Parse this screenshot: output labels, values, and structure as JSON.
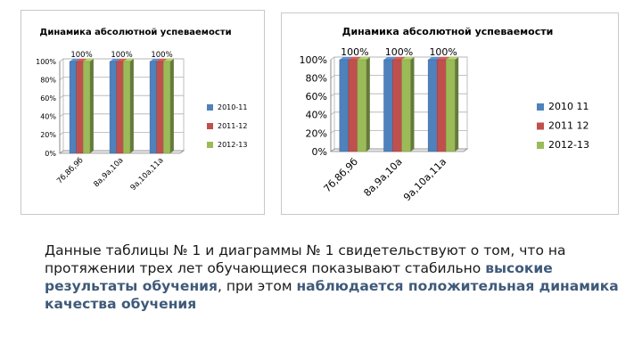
{
  "chart_data": [
    {
      "type": "bar",
      "title": "Динамика абсолютной успеваемости",
      "categories": [
        "7б,8б,9б",
        "8а,9а,10а",
        "9а,10а,11а"
      ],
      "series": [
        {
          "name": "2010-11",
          "values": [
            100,
            100,
            100
          ],
          "color": "#4f81bd"
        },
        {
          "name": "2011-12",
          "values": [
            100,
            100,
            100
          ],
          "color": "#c0504d"
        },
        {
          "name": "2012-13",
          "values": [
            100,
            100,
            100
          ],
          "color": "#9bbb59"
        }
      ],
      "data_labels": [
        "100%",
        "100%",
        "100%"
      ],
      "y_ticks": [
        "0%",
        "20%",
        "40%",
        "60%",
        "80%",
        "100%"
      ],
      "ylim": [
        0,
        100
      ],
      "grid": true,
      "legend": "right",
      "style": "3d"
    },
    {
      "type": "bar",
      "title": "Динамика абсолютной успеваемости",
      "categories": [
        "7б,8б,9б",
        "8а,9а,10а",
        "9а,10а,11а"
      ],
      "series": [
        {
          "name": "2010 11",
          "values": [
            100,
            100,
            100
          ],
          "color": "#4f81bd"
        },
        {
          "name": "2011 12",
          "values": [
            100,
            100,
            100
          ],
          "color": "#c0504d"
        },
        {
          "name": "2012-13",
          "values": [
            100,
            100,
            100
          ],
          "color": "#9bbb59"
        }
      ],
      "data_labels": [
        "100%",
        "100%",
        "100%"
      ],
      "y_ticks": [
        "0%",
        "20%",
        "40%",
        "60%",
        "80%",
        "100%"
      ],
      "ylim": [
        0,
        100
      ],
      "grid": true,
      "legend": "right",
      "style": "3d"
    }
  ],
  "caption": {
    "part1": "Данные таблицы № 1 и диаграммы № 1 свидетельствуют о том, что на протяжении трех лет обучающиеся показывают стабильно ",
    "hl1": "высокие результаты обучения",
    "part2": ", при этом ",
    "hl2": "наблюдается положительная динамика качества обучения"
  }
}
